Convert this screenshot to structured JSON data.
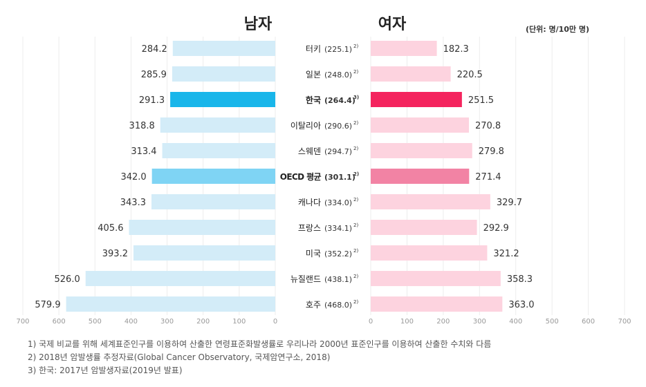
{
  "chart_data": {
    "type": "bar",
    "subtype": "population-pyramid",
    "title_left": "남자",
    "title_right": "여자",
    "unit_label": "(단위: 명/10만 명)",
    "categories": [
      "터키",
      "일본",
      "한국",
      "이탈리아",
      "스웨덴",
      "OECD 평균",
      "캐나다",
      "프랑스",
      "미국",
      "뉴질랜드",
      "호주"
    ],
    "totals": [
      "(225.1)",
      "(248.0)",
      "(264.4)",
      "(290.6)",
      "(294.7)",
      "(301.1)",
      "(334.0)",
      "(334.1)",
      "(352.2)",
      "(438.1)",
      "(468.0)"
    ],
    "footnote_refs": [
      "2)",
      "2)",
      "3)",
      "2)",
      "2)",
      "2)",
      "2)",
      "2)",
      "2)",
      "2)",
      "2)"
    ],
    "series": [
      {
        "name": "남자",
        "values": [
          284.2,
          285.9,
          291.3,
          318.8,
          313.4,
          342.0,
          343.3,
          405.6,
          393.2,
          526.0,
          579.9
        ],
        "labels": [
          "284.2",
          "285.9",
          "291.3",
          "318.8",
          "313.4",
          "342.0",
          "343.3",
          "405.6",
          "393.2",
          "526.0",
          "579.9"
        ]
      },
      {
        "name": "여자",
        "values": [
          182.3,
          220.5,
          251.5,
          270.8,
          279.8,
          271.4,
          329.7,
          292.9,
          321.2,
          358.3,
          363.0
        ],
        "labels": [
          "182.3",
          "220.5",
          "251.5",
          "270.8",
          "279.8",
          "271.4",
          "329.7",
          "292.9",
          "321.2",
          "358.3",
          "363.0"
        ]
      }
    ],
    "highlight": {
      "한국": "primary",
      "OECD 평균": "secondary"
    },
    "xlim": [
      0,
      700
    ],
    "xticks": [
      0,
      100,
      200,
      300,
      400,
      500,
      600,
      700
    ],
    "xtick_labels": [
      "0",
      "100",
      "200",
      "300",
      "400",
      "500",
      "600",
      "700"
    ],
    "grid": true
  },
  "colors": {
    "male_normal": "#d3ecf8",
    "male_korea": "#19b6ea",
    "male_oecd": "#7fd4f4",
    "female_normal": "#fdd3df",
    "female_korea": "#f4245e",
    "female_oecd": "#f283a4",
    "grid": "#ececec",
    "text": "#333333"
  },
  "notes": [
    "1) 국제 비교를 위해 세계표준인구를 이용하여 산출한 연령표준화발생률로 우리나라 2000년 표준인구를 이용하여 산출한 수치와 다름",
    "2) 2018년 암발생률 추정자료(Global Cancer Observatory, 국제암연구소, 2018)",
    "3) 한국: 2017년 암발생자료(2019년 발표)"
  ]
}
